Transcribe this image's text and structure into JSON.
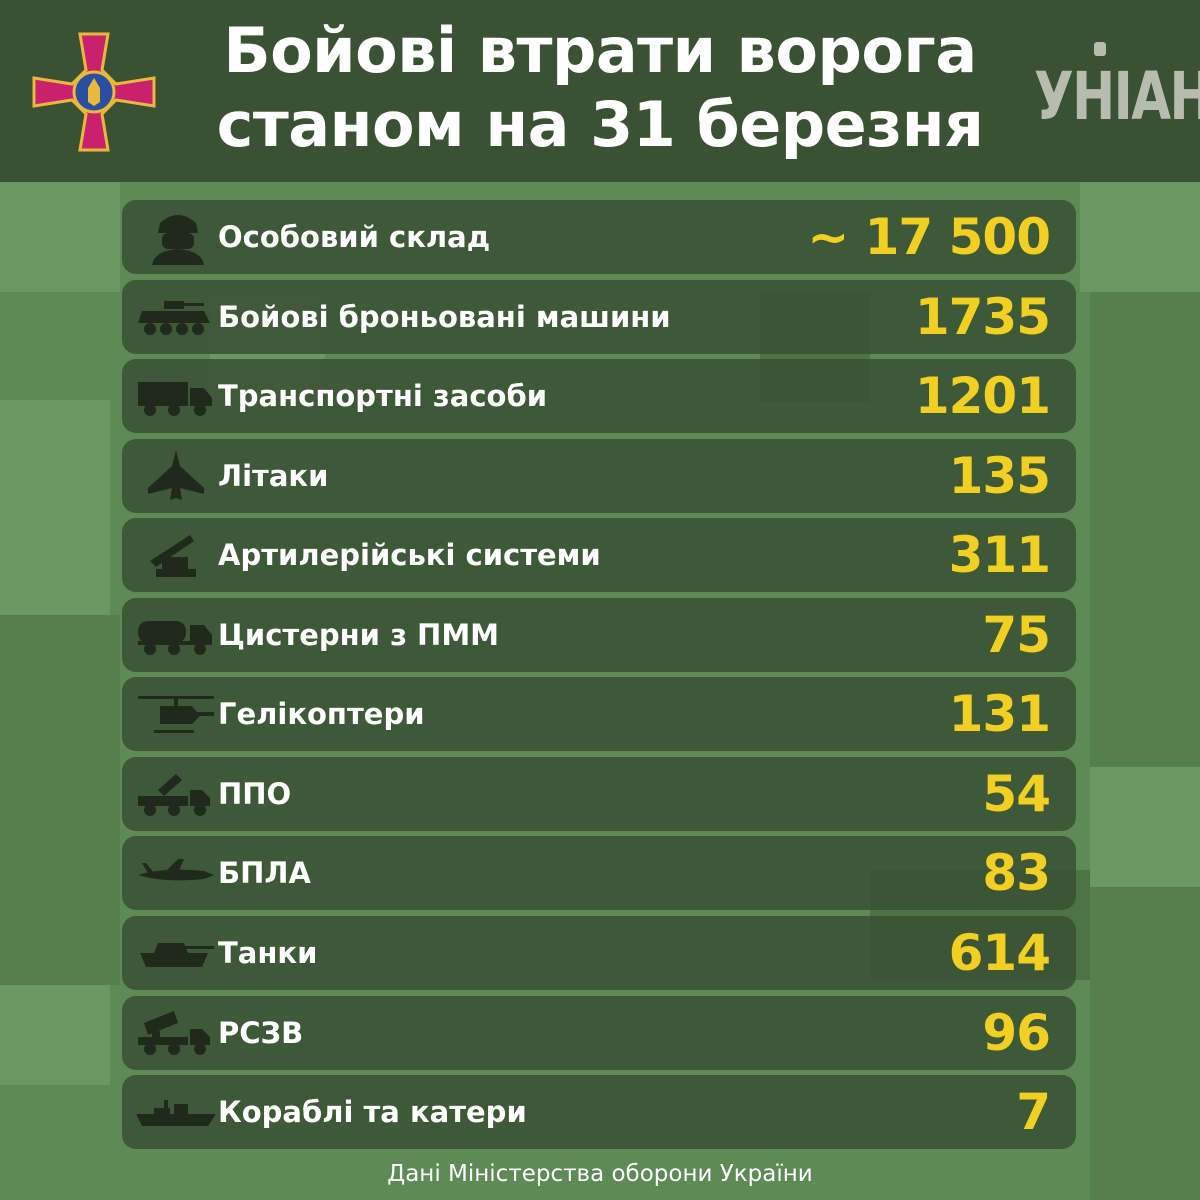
{
  "header": {
    "title_line1": "Бойові втрати ворога",
    "title_line2": "станом на 31 березня",
    "brand": "УНІАН",
    "emblem_icon": "armed-forces-cross-icon",
    "brand_icon": "unian-logo-icon"
  },
  "colors": {
    "background": "#5d8a55",
    "header": "#3a5233",
    "row": "#3a5233",
    "value": "#f2cf23",
    "text": "#ffffff"
  },
  "rows": [
    {
      "label": "Особовий склад",
      "value": "~ 17 500",
      "icon": "soldier-icon"
    },
    {
      "label": "Бойові броньовані машини",
      "value": "1735",
      "icon": "armored-vehicle-icon"
    },
    {
      "label": "Транспортні засоби",
      "value": "1201",
      "icon": "truck-icon"
    },
    {
      "label": "Літаки",
      "value": "135",
      "icon": "jet-icon"
    },
    {
      "label": "Артилерійські системи",
      "value": "311",
      "icon": "artillery-icon"
    },
    {
      "label": "Цистерни з ПММ",
      "value": "75",
      "icon": "fuel-tanker-icon"
    },
    {
      "label": "Гелікоптери",
      "value": "131",
      "icon": "helicopter-icon"
    },
    {
      "label": "ППО",
      "value": "54",
      "icon": "air-defense-icon"
    },
    {
      "label": "БПЛА",
      "value": "83",
      "icon": "drone-icon"
    },
    {
      "label": "Танки",
      "value": "614",
      "icon": "tank-icon"
    },
    {
      "label": "РСЗВ",
      "value": "96",
      "icon": "mlrs-icon"
    },
    {
      "label": "Кораблі та катери",
      "value": "7",
      "icon": "ship-icon"
    }
  ],
  "footer": "Дані Міністерства оборони України"
}
